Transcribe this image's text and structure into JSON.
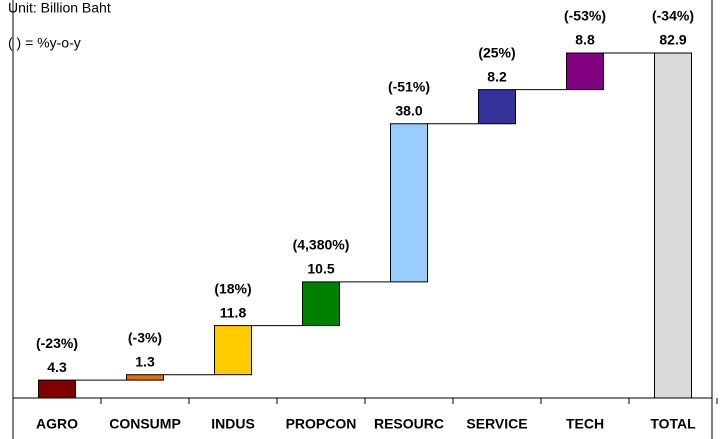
{
  "chart_data": {
    "type": "waterfall",
    "subtitle": "Unit: Billion Baht",
    "note": "(  ) = %y-o-y",
    "categories": [
      "AGRO",
      "CONSUMP",
      "INDUS",
      "PROPCON",
      "RESOURC",
      "SERVICE",
      "TECH",
      "TOTAL"
    ],
    "values": [
      4.3,
      1.3,
      11.8,
      10.5,
      38.0,
      8.2,
      8.8,
      82.9
    ],
    "value_labels": [
      "4.3",
      "1.3",
      "11.8",
      "10.5",
      "38.0",
      "8.2",
      "8.8",
      "82.9"
    ],
    "change_labels": [
      "(-23%)",
      "(-3%)",
      "(18%)",
      "(4,380%)",
      "(-51%)",
      "(25%)",
      "(-53%)",
      "(-34%)"
    ],
    "colors": [
      "#800000",
      "#e46c0a",
      "#ffcc00",
      "#008000",
      "#99ccff",
      "#333399",
      "#800080",
      "#d9d9d9"
    ]
  }
}
